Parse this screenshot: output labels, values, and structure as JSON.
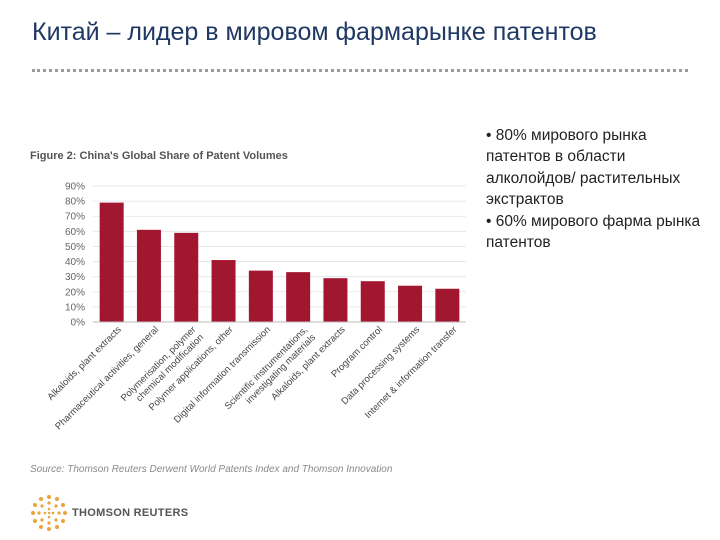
{
  "slide": {
    "title": "Китай – лидер в мировом фармарынке патентов",
    "bullets": [
      "• 80% мирового рынка патентов в области алколойдов/ растительных экстрактов",
      "• 60% мирового фарма рынка патентов"
    ]
  },
  "figure": {
    "source": "Source: Thomson Reuters Derwent World Patents Index and Thomson Innovation",
    "logo_text": "THOMSON REUTERS"
  },
  "colors": {
    "bar": "#a3162f",
    "title": "#1f3864",
    "text": "#222222"
  },
  "chart_data": {
    "type": "bar",
    "title": "Figure 2: China's Global Share of Patent Volumes",
    "categories": [
      "Alkaloids, plant extracts",
      "Pharmaceutical activities, general",
      "Polymerisation, polymer chemical modification",
      "Polymer applications, other",
      "Digital information transmission",
      "Scientific instrumentations, investigating materials",
      "Alkaloids, plant extracts",
      "Program control",
      "Data processing systems",
      "Internet & information transfer"
    ],
    "category_lines": [
      [
        "Alkaloids, plant extracts"
      ],
      [
        "Pharmaceutical activities, general"
      ],
      [
        "Polymerisation, polymer",
        "chemical modification"
      ],
      [
        "Polymer applications, other"
      ],
      [
        "Digital information transmission"
      ],
      [
        "Scientific instrumentations,",
        "investigating materials"
      ],
      [
        "Alkaloids, plant extracts"
      ],
      [
        "Program control"
      ],
      [
        "Data processing systems"
      ],
      [
        "Internet & information transfer"
      ]
    ],
    "values": [
      79,
      61,
      59,
      41,
      34,
      33,
      29,
      27,
      24,
      22
    ],
    "yticks": [
      "90%",
      "80%",
      "70%",
      "60%",
      "50%",
      "40%",
      "30%",
      "20%",
      "10%",
      "0%"
    ],
    "ylim": [
      0,
      90
    ],
    "xlabel": "",
    "ylabel": "",
    "grid": true
  }
}
